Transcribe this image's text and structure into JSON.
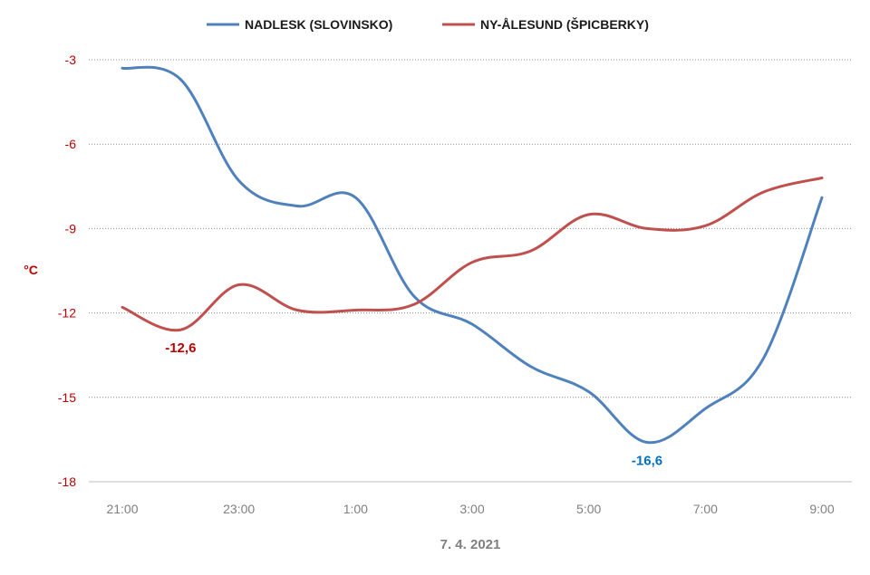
{
  "chart_data": {
    "type": "line",
    "title": "",
    "xlabel": "7. 4. 2021",
    "ylabel": "°C",
    "categories": [
      "21:00",
      "22:00",
      "23:00",
      "0:00",
      "1:00",
      "2:00",
      "3:00",
      "4:00",
      "5:00",
      "6:00",
      "7:00",
      "8:00",
      "9:00"
    ],
    "x_tick_labels": [
      "21:00",
      "23:00",
      "1:00",
      "3:00",
      "5:00",
      "7:00",
      "9:00"
    ],
    "ylim": [
      -18,
      -3
    ],
    "y_ticks": [
      "-3",
      "-6",
      "-9",
      "-12",
      "-15",
      "-18"
    ],
    "grid": "horizontal dotted",
    "legend_position": "top",
    "series": [
      {
        "name": "NADLESK (SLOVINSKO)",
        "color": "#4f81bd",
        "values": [
          -3.3,
          -3.7,
          -7.3,
          -8.2,
          -7.9,
          -11.4,
          -12.4,
          -13.9,
          -14.8,
          -16.6,
          -15.4,
          -13.6,
          -7.9
        ],
        "annotation": {
          "index": 9,
          "text": "-16,6",
          "color": "#0070c0"
        }
      },
      {
        "name": "NY-ÅLESUND (ŠPICBERKY)",
        "color": "#c0504d",
        "values": [
          -11.8,
          -12.6,
          -11.0,
          -11.9,
          -11.9,
          -11.7,
          -10.2,
          -9.8,
          -8.5,
          -9.0,
          -8.9,
          -7.7,
          -7.2
        ],
        "annotation": {
          "index": 1,
          "text": "-12,6",
          "color": "#c00000"
        }
      }
    ]
  }
}
